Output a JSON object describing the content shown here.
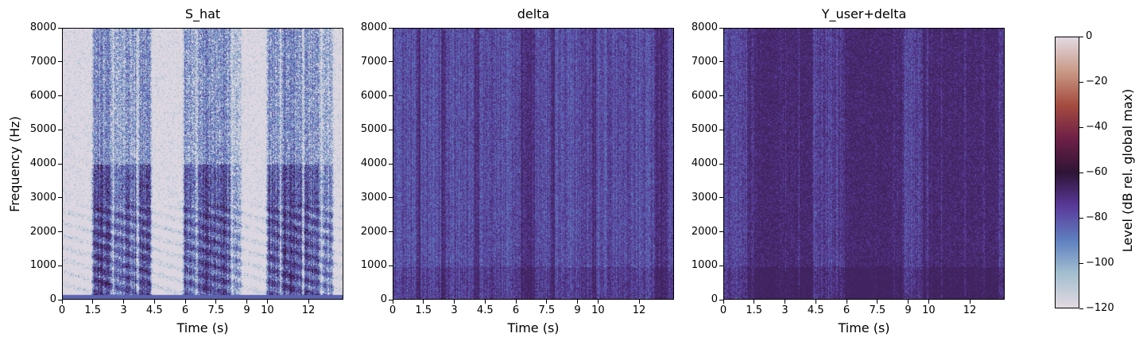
{
  "figure": {
    "colormap": "twilight",
    "background": "#ffffff"
  },
  "panels": [
    {
      "id": "panel-s-hat",
      "title": "S_hat",
      "xlabel": "Time (s)",
      "ylabel": "Frequency (Hz)",
      "show_yaxis_label": true
    },
    {
      "id": "panel-delta",
      "title": "delta",
      "xlabel": "Time (s)",
      "ylabel": "",
      "show_yaxis_label": false
    },
    {
      "id": "panel-y-user-delta",
      "title": "Y_user+delta",
      "xlabel": "Time (s)",
      "ylabel": "",
      "show_yaxis_label": false
    }
  ],
  "colorbar": {
    "label": "Level (dB rel. global max)",
    "range": [
      -120,
      0
    ],
    "ticks": [
      "0",
      "−20",
      "−40",
      "−60",
      "−80",
      "−100",
      "−120"
    ],
    "tick_values": [
      0,
      -20,
      -40,
      -60,
      -80,
      -100,
      -120
    ],
    "stops": [
      "#e2d9e2",
      "#a4bfcf",
      "#5e7fc0",
      "#5a3a9a",
      "#2f1436",
      "#6e2047",
      "#a54c3f",
      "#c99a86",
      "#e2d9e2"
    ]
  },
  "chart_data": [
    {
      "type": "heatmap",
      "title": "S_hat",
      "xlabel": "Time (s)",
      "ylabel": "Frequency (Hz)",
      "xlim": [
        0,
        13.7
      ],
      "ylim": [
        0,
        8000
      ],
      "xticks": [
        0,
        1.5,
        3,
        4.5,
        6,
        7.5,
        9,
        10,
        12
      ],
      "xtick_labels": [
        "0",
        "1.5",
        "3",
        "4.5",
        "6",
        "7.5",
        "9",
        "10",
        "12"
      ],
      "yticks": [
        0,
        1000,
        2000,
        3000,
        4000,
        5000,
        6000,
        7000,
        8000
      ],
      "ytick_labels": [
        "0",
        "1000",
        "2000",
        "3000",
        "4000",
        "5000",
        "6000",
        "7000",
        "8000"
      ],
      "value_range_db": [
        -120,
        0
      ],
      "content": "speech spectrogram with silent (near −120 dB) gaps around 0–1.4 s, 4.5–5.8 s and 8.8–10 s; energy concentrated below 4000 Hz with harmonic striations"
    },
    {
      "type": "heatmap",
      "title": "delta",
      "xlabel": "Time (s)",
      "ylabel": "",
      "xlim": [
        0,
        13.7
      ],
      "ylim": [
        0,
        8000
      ],
      "xticks": [
        0,
        1.5,
        3,
        4.5,
        6,
        7.5,
        9,
        10,
        12
      ],
      "xtick_labels": [
        "0",
        "1.5",
        "3",
        "4.5",
        "6",
        "7.5",
        "9",
        "10",
        "12"
      ],
      "yticks": [
        0,
        1000,
        2000,
        3000,
        4000,
        5000,
        6000,
        7000,
        8000
      ],
      "ytick_labels": [
        "0",
        "1000",
        "2000",
        "3000",
        "4000",
        "5000",
        "6000",
        "7000",
        "8000"
      ],
      "value_range_db": [
        -120,
        0
      ],
      "content": "broadband perturbation spectrogram, mostly −70 to −100 dB across all frequencies, stronger dark bands near 6.5 s and 13 s"
    },
    {
      "type": "heatmap",
      "title": "Y_user+delta",
      "xlabel": "Time (s)",
      "ylabel": "",
      "xlim": [
        0,
        13.7
      ],
      "ylim": [
        0,
        8000
      ],
      "xticks": [
        0,
        1.5,
        3,
        4.5,
        6,
        7.5,
        9,
        10,
        12
      ],
      "xtick_labels": [
        "0",
        "1.5",
        "3",
        "4.5",
        "6",
        "7.5",
        "9",
        "10",
        "12"
      ],
      "yticks": [
        0,
        1000,
        2000,
        3000,
        4000,
        5000,
        6000,
        7000,
        8000
      ],
      "ytick_labels": [
        "0",
        "1000",
        "2000",
        "3000",
        "4000",
        "5000",
        "6000",
        "7000",
        "8000"
      ],
      "value_range_db": [
        -120,
        0
      ],
      "content": "mixture spectrogram, dense energy across all frequencies, strongest below 1000 Hz, dark vertical bands near 4 s, 6.5 s and 13 s"
    }
  ]
}
